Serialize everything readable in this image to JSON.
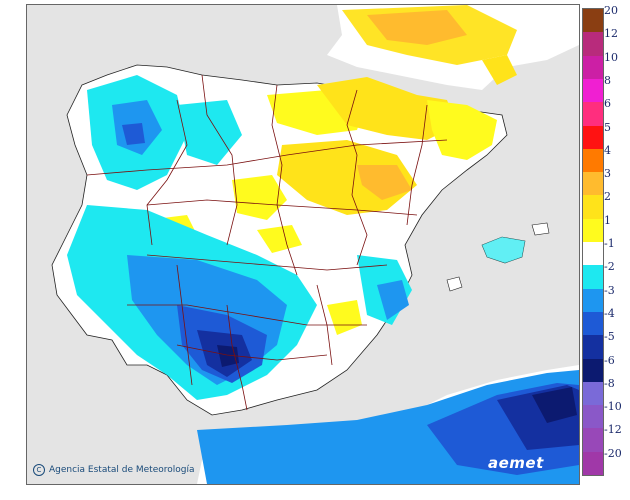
{
  "map": {
    "credit": "Agencia Estatal de Meteorología",
    "logo_text": "aemet"
  },
  "legend": {
    "classes": [
      {
        "label": "20",
        "color": "#8a3e12"
      },
      {
        "label": "12",
        "color": "#b82b7c"
      },
      {
        "label": "10",
        "color": "#cc1fa5"
      },
      {
        "label": "8",
        "color": "#f01fd2"
      },
      {
        "label": "6",
        "color": "#ff2e7e"
      },
      {
        "label": "5",
        "color": "#ff1212"
      },
      {
        "label": "4",
        "color": "#ff7a00"
      },
      {
        "label": "3",
        "color": "#ffbb2e"
      },
      {
        "label": "2",
        "color": "#ffe31a"
      },
      {
        "label": "1",
        "color": "#fffb1e"
      },
      {
        "label": "-1",
        "color": "#ffffff"
      },
      {
        "label": "-2",
        "color": "#1ee8f0"
      },
      {
        "label": "-3",
        "color": "#1e96f0"
      },
      {
        "label": "-4",
        "color": "#1e5ad6"
      },
      {
        "label": "-5",
        "color": "#1430a0"
      },
      {
        "label": "-6",
        "color": "#0c1a70"
      },
      {
        "label": "-8",
        "color": "#7a6ad8"
      },
      {
        "label": "-10",
        "color": "#8a58c8"
      },
      {
        "label": "-12",
        "color": "#9848b8"
      },
      {
        "label": "-20",
        "color": "#a038a8"
      }
    ]
  }
}
